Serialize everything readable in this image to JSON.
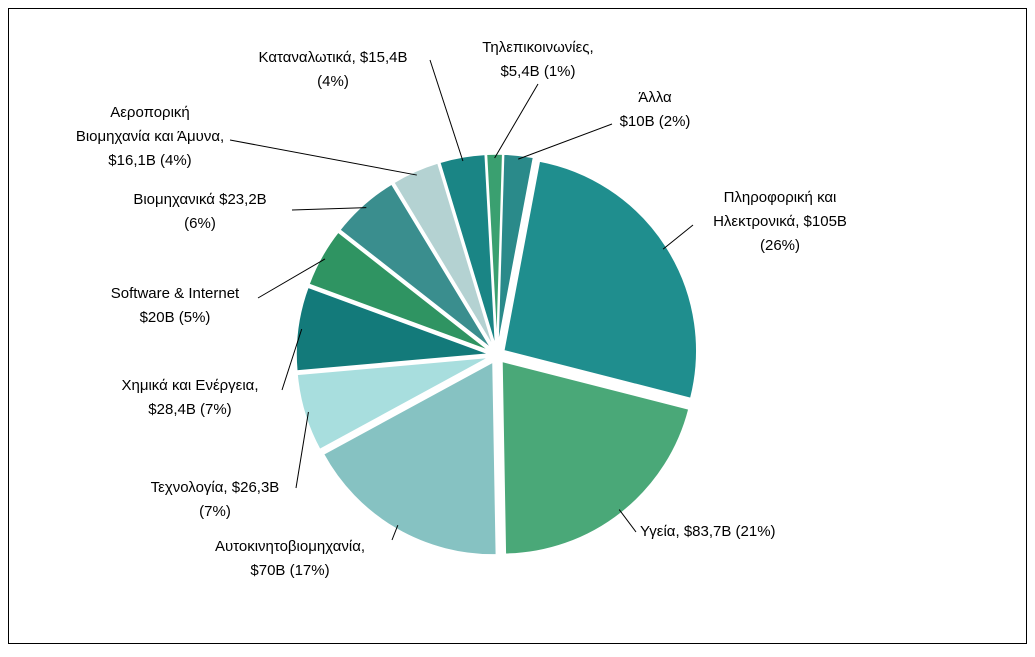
{
  "chart_data": {
    "type": "pie",
    "labels": [
      [
        "Άλλα",
        "$10B  (2%)"
      ],
      [
        "Πληροφορική και",
        "Ηλεκτρονικά, $105B",
        "(26%)"
      ],
      [
        "Υγεία, $83,7B (21%)"
      ],
      [
        "Αυτοκινητοβιομηχανία,",
        "$70B (17%)"
      ],
      [
        "Τεχνολογία, $26,3B",
        "(7%)"
      ],
      [
        "Χημικά και Ενέργεια,",
        "$28,4B (7%)"
      ],
      [
        "Software & Internet",
        "$20B  (5%)"
      ],
      [
        "Βιομηχανικά $23,2B",
        "(6%)"
      ],
      [
        "Αεροπορική",
        "Βιομηχανία και Άμυνα,",
        "$16,1B (4%)"
      ],
      [
        "Καταναλωτικά, $15,4B",
        "(4%)"
      ],
      [
        "Τηλεπικοινωνίες,",
        "$5,4B (1%)"
      ]
    ],
    "values": [
      10,
      105,
      83.7,
      70,
      26.3,
      28.4,
      20,
      23.2,
      16.1,
      15.4,
      5.4
    ],
    "colors": [
      "#2a8a8a",
      "#1f8e8e",
      "#4aa878",
      "#86c2c2",
      "#a8dede",
      "#137a7a",
      "#2f9462",
      "#3a8e8e",
      "#b4d2d2",
      "#1a8585",
      "#3aa070"
    ]
  }
}
